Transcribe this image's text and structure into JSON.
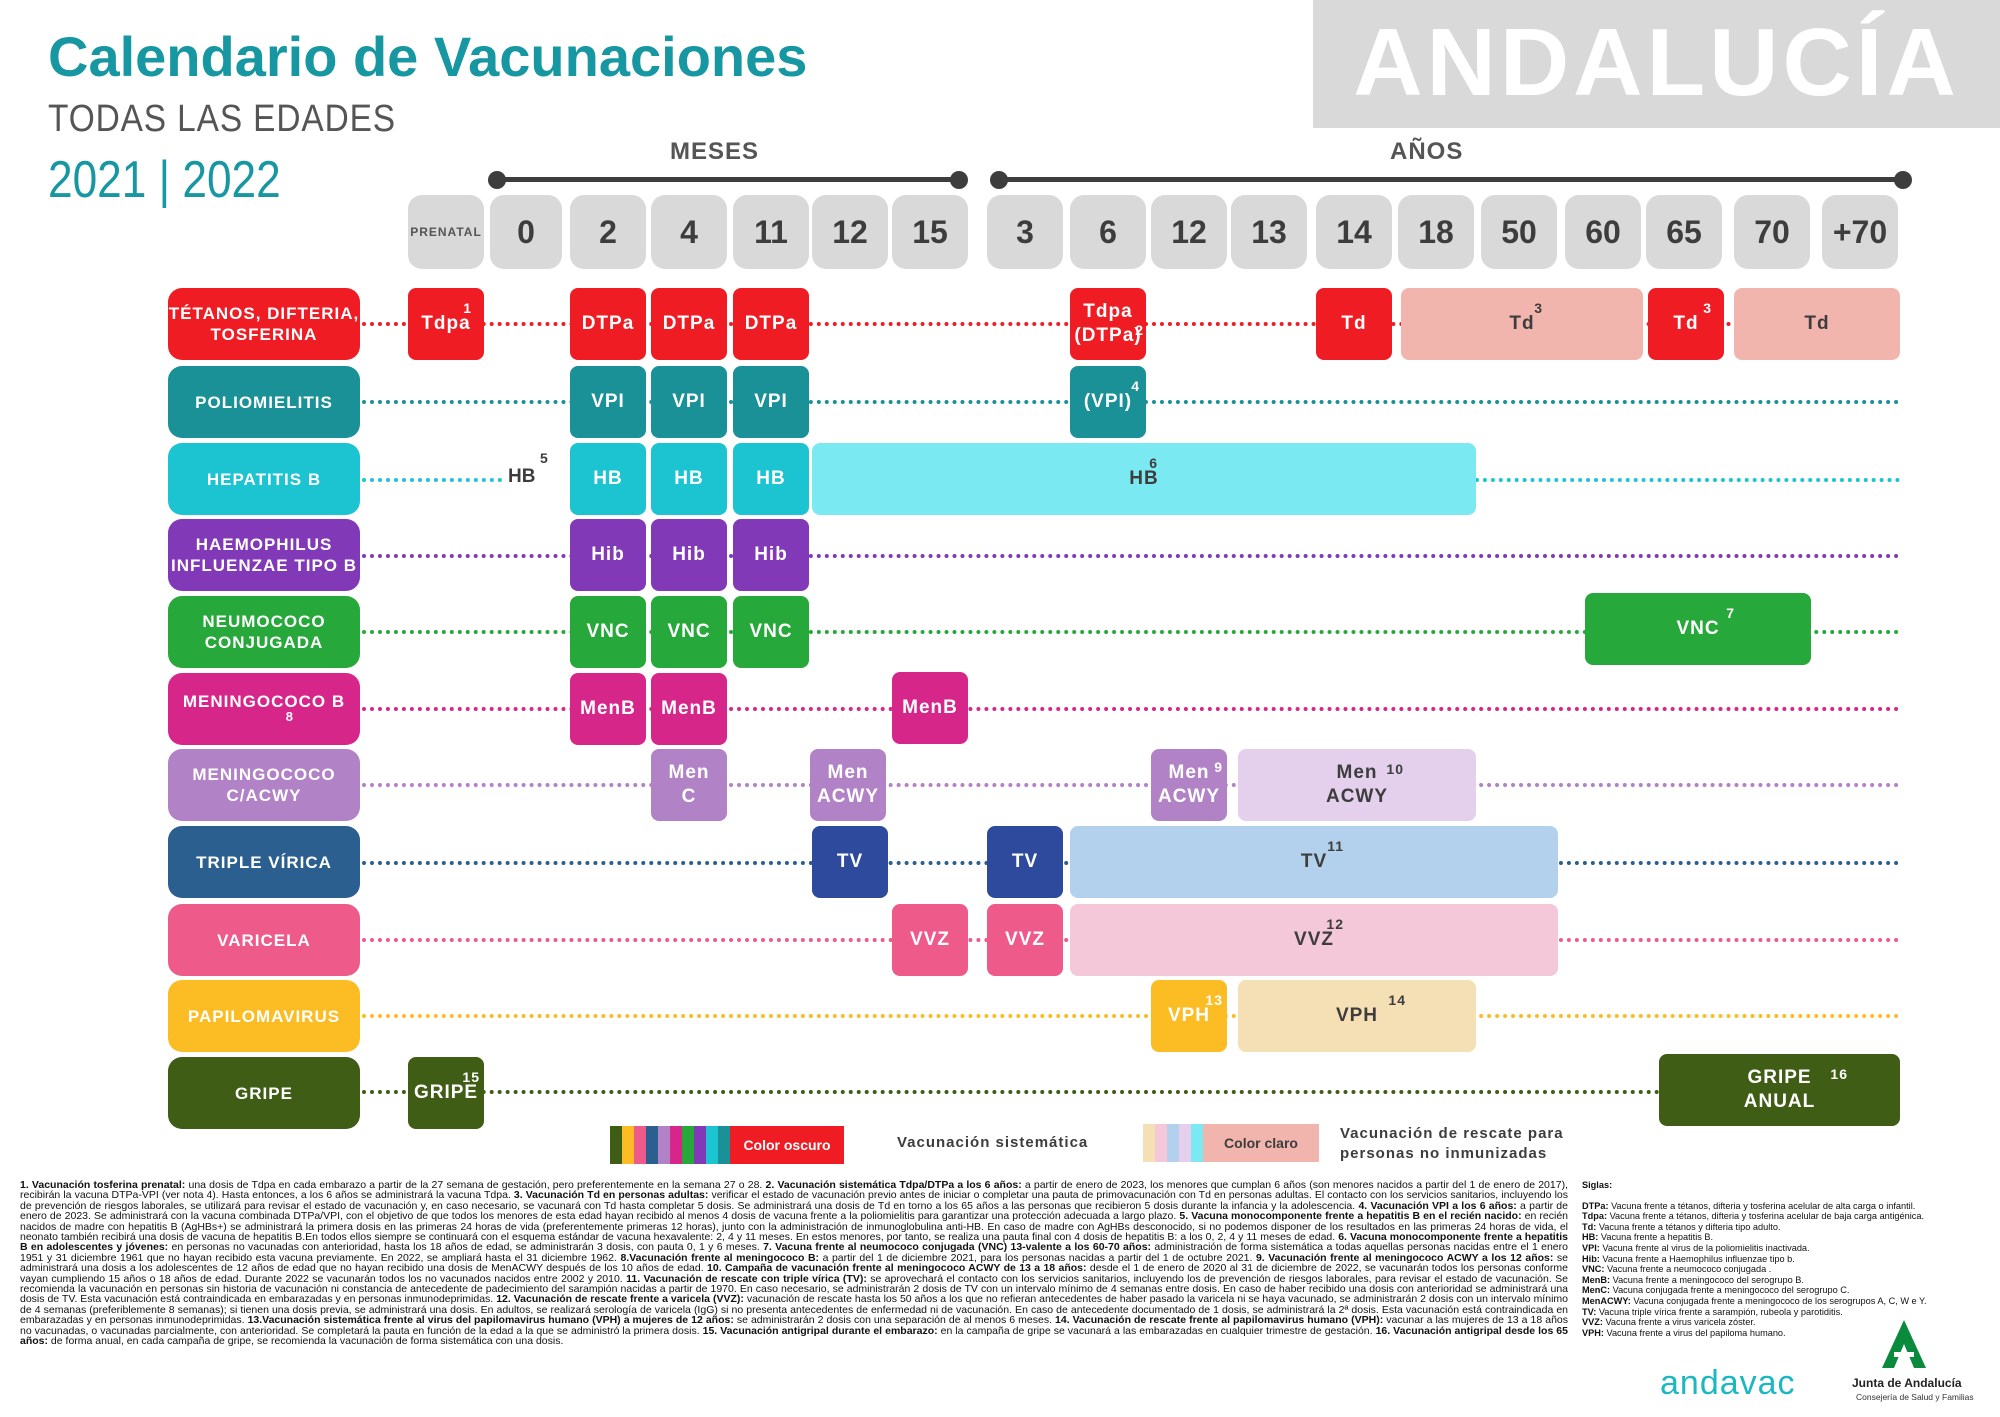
{
  "header": {
    "title": "Calendario de Vacunaciones",
    "subtitle": "TODAS LAS EDADES",
    "years": "2021 | 2022",
    "region": "ANDALUCÍA",
    "months_label": "MESES",
    "years_label": "AÑOS"
  },
  "ages": [
    "PRENATAL",
    "0",
    "2",
    "4",
    "11",
    "12",
    "15",
    "3",
    "6",
    "12",
    "13",
    "14",
    "18",
    "50",
    "60",
    "65",
    "70",
    "+70"
  ],
  "vaccines": [
    {
      "name": "TÉTANOS, DIFTERIA, TOSFERINA",
      "color": "#ef1c24"
    },
    {
      "name": "POLIOMIELITIS",
      "color": "#1a9197"
    },
    {
      "name": "HEPATITIS B",
      "color": "#1cc3d0"
    },
    {
      "name": "HAEMOPHILUS INFLUENZAE TIPO B",
      "color": "#8139b7"
    },
    {
      "name": "NEUMOCOCO CONJUGADA",
      "color": "#27a83a"
    },
    {
      "name": "MENINGOCOCO B",
      "sup": "8",
      "color": "#d6268a"
    },
    {
      "name": "MENINGOCOCO C/ACWY",
      "color": "#b282c6"
    },
    {
      "name": "TRIPLE VÍRICA",
      "color": "#2b5f8f"
    },
    {
      "name": "VARICELA",
      "color": "#ee5a8a"
    },
    {
      "name": "PAPILOMAVIRUS",
      "color": "#fbbc24"
    },
    {
      "name": "GRIPE",
      "color": "#3f5d14"
    }
  ],
  "cells": {
    "tdpa_prenatal": {
      "label": "Tdpa",
      "sup": "1"
    },
    "dtpa": "DTPa",
    "tdpa6_l1": "Tdpa",
    "tdpa6_l2": "(DTPa)",
    "tdpa6_sup": "2",
    "td": "Td",
    "td_sup3": "3",
    "vpi": "VPI",
    "vpi6": {
      "label": "(VPI)",
      "sup": "4"
    },
    "hb": "HB",
    "hb_prenatal_sup": "5",
    "hb_long_sup": "6",
    "hib": "Hib",
    "vnc": "VNC",
    "vnc_sup": "7",
    "menb": "MenB",
    "menc_l1": "Men",
    "menc_l2": "C",
    "menacwy_l1": "Men",
    "menacwy_l2": "ACWY",
    "men_sup9": "9",
    "men_sup10": "10",
    "tv": "TV",
    "tv_sup": "11",
    "vvz": "VVZ",
    "vvz_sup": "12",
    "vph": "VPH",
    "vph_sup13": "13",
    "vph_sup14": "14",
    "gripe": "GRIPE",
    "gripe_sup15": "15",
    "gripe_anual_l1": "GRIPE",
    "gripe_anual_l2": "ANUAL",
    "gripe_sup16": "16"
  },
  "legend": {
    "dark_label": "Color oscuro",
    "dark_desc": "Vacunación sistemática",
    "light_label": "Color claro",
    "light_desc_1": "Vacunación de rescate para",
    "light_desc_2": "personas no inmunizadas"
  },
  "notes": [
    {
      "b": "1. Vacunación tosferina prenatal:",
      "t": " una dosis de Tdpa en cada embarazo a partir de la 27 semana de gestación, pero preferentemente en la semana 27 o 28. "
    },
    {
      "b": "2. Vacunación sistemática Tdpa/DTPa a los 6 años:",
      "t": " a partir de enero de 2023, los menores que cumplan 6 años (son menores nacidos a partir del 1 de enero de 2017), recibirán la vacuna DTPa-VPI (ver nota 4). Hasta entonces, a los 6 años se administrará la vacuna Tdpa. "
    },
    {
      "b": "3. Vacunación Td en personas adultas:",
      "t": " verificar el estado de vacunación previo antes de iniciar o completar una pauta de primovacunación con Td en personas adultas. El contacto con los servicios sanitarios, incluyendo los de prevención de riesgos laborales, se utilizará para revisar el estado de vacunación y, en caso necesario, se vacunará con Td hasta completar 5 dosis. Se administrará una dosis de Td en torno a los 65 años a las personas que recibieron 5 dosis durante la infancia y la adolescencia. "
    },
    {
      "b": "4. Vacunación VPI a los 6 años:",
      "t": " a partir de enero de 2023. Se administrará con la vacuna combinada DTPa/VPI, con el objetivo de que todos los menores de esta edad hayan recibido al menos 4 dosis de vacuna frente a la poliomielitis para garantizar una protección adecuada a largo plazo. "
    },
    {
      "b": "5. Vacuna monocomponente frente a hepatitis B en el recién nacido:",
      "t": " en recién nacidos de madre con hepatitis B (AgHBs+) se administrará la primera dosis en las primeras 24 horas de vida (preferentemente primeras 12 horas), junto con la administración de inmunoglobulina anti-HB. En caso de madre con AgHBs desconocido, si no podemos disponer de los resultados en las primeras 24 horas de vida, el neonato también recibirá una dosis de vacuna de hepatitis B.En todos ellos siempre se continuará con el esquema estándar de vacuna hexavalente: 2, 4 y 11 meses. En estos menores, por tanto, se realiza una pauta final con 4 dosis de hepatitis B: a los 0, 2, 4 y 11 meses de edad. "
    },
    {
      "b": "6. Vacuna monocomponente frente a hepatitis B en adolescentes y jóvenes:",
      "t": " en personas no vacunadas con anterioridad, hasta los 18 años de edad, se administrarán 3 dosis, con pauta 0, 1 y 6 meses. "
    },
    {
      "b": "7. Vacuna frente al neumococo conjugada (VNC) 13-valente a los 60-70 años:",
      "t": " administración de forma sistemática a todas aquellas personas nacidas entre el 1 enero 1951 y 31 diciembre 1961 que no hayan recibido esta vacuna previamente. En 2022, se ampliará hasta el 31 diciembre 1962. "
    },
    {
      "b": "8.Vacunación frente al meningococo B:",
      "t": " a partir del 1 de diciembre 2021, para los personas nacidas a partir del 1 de octubre 2021. "
    },
    {
      "b": "9. Vacunación frente al meningococo ACWY a los 12 años:",
      "t": " se administrará una dosis a los adolescentes de 12 años de edad que no hayan recibido una dosis de MenACWY después de los 10 años de edad. "
    },
    {
      "b": "10. Campaña de vacunación frente al meningococo ACWY de 13 a 18 años:",
      "t": " desde el 1 de enero de 2020 al 31 de diciembre de 2022, se vacunarán todos los personas conforme vayan cumpliendo 15 años o 18 años de edad. Durante 2022 se vacunarán todos los no vacunados nacidos entre 2002 y 2010. "
    },
    {
      "b": "11. Vacunación de rescate con triple vírica (TV):",
      "t": " se aprovechará el contacto con los servicios sanitarios, incluyendo los de prevención de riesgos laborales, para revisar el estado de vacunación. Se recomienda la vacunación en personas sin historia de vacunación ni constancia de antecedente de padecimiento del sarampión nacidas a partir de 1970. En caso necesario, se administrarán 2 dosis de TV con un intervalo mínimo de 4 semanas entre dosis. En caso de haber recibido una dosis con anterioridad se administrará una dosis de TV. Esta vacunación está contraindicada en embarazadas y en personas inmunodeprimidas. "
    },
    {
      "b": "12. Vacunación de rescate frente a varicela (VVZ):",
      "t": " vacunación de rescate hasta los 50 años a los que no refieran antecedentes de haber pasado la varicela ni se haya vacunado, se administrarán 2 dosis con un intervalo mínimo de 4 semanas (preferiblemente 8 semanas); si tienen una dosis previa, se administrará una dosis. En adultos, se realizará serología de varicela (IgG) si no presenta antecedentes de enfermedad ni de vacunación. En caso de antecedente documentado de 1 dosis, se administrará la 2ª dosis. Esta vacunación está contraindicada en embarazadas y en personas inmunodeprimidas. "
    },
    {
      "b": "13.Vacunación sistemática frente al virus del papilomavirus humano (VPH) a mujeres de 12 años:",
      "t": " se administrarán 2 dosis con una separación de al menos 6 meses. "
    },
    {
      "b": "14. Vacunación de rescate frente al papilomavirus humano (VPH):",
      "t": " vacunar a las mujeres de 13 a 18 años no vacunadas, o vacunadas parcialmente, con anterioridad. Se completará la pauta en función de la edad a la que se administró la primera dosis. "
    },
    {
      "b": "15. Vacunación antigripal durante el embarazo:",
      "t": " en la campaña de gripe se vacunará a las embarazadas en cualquier trimestre de gestación. "
    },
    {
      "b": "16. Vacunación antigripal desde los 65 años:",
      "t": " de forma anual, en cada campaña de gripe, se recomienda la vacunación de forma sistemática con una dosis."
    }
  ],
  "siglas": {
    "title": "Siglas:",
    "items": [
      {
        "k": "DTPa:",
        "v": " Vacuna frente a tétanos, difteria y tosferina acelular de alta carga o infantil."
      },
      {
        "k": "Tdpa:",
        "v": " Vacuna frente a tétanos, difteria y tosferina acelular de baja carga antigénica."
      },
      {
        "k": "Td:",
        "v": " Vacuna frente a tétanos y difteria tipo adulto."
      },
      {
        "k": "HB:",
        "v": " Vacuna frente a hepatitis B."
      },
      {
        "k": "VPI:",
        "v": " Vacuna frente al virus de la poliomielitis inactivada."
      },
      {
        "k": "Hib:",
        "v": " Vacuna frente a Haemophilus influenzae tipo b."
      },
      {
        "k": "VNC:",
        "v": " Vacuna frente a neumococo conjugada ."
      },
      {
        "k": "MenB:",
        "v": " Vacuna frente a meningococo del serogrupo B."
      },
      {
        "k": "MenC:",
        "v": " Vacuna conjugada frente a meningococo del serogrupo C."
      },
      {
        "k": "MenACWY:",
        "v": " Vacuna conjugada frente a meningococo de los serogrupos A, C, W e Y."
      },
      {
        "k": "TV:",
        "v": " Vacuna triple vírica frente a sarampión, rubeola y parotiditis."
      },
      {
        "k": "VVZ:",
        "v": " Vacuna frente a virus varicela zóster."
      },
      {
        "k": "VPH:",
        "v": " Vacuna frente a virus del papiloma humano."
      }
    ]
  },
  "logos": {
    "andavac": "andavac",
    "junta": "Junta de Andalucía",
    "junta_sub": "Consejería de Salud y Familias"
  }
}
